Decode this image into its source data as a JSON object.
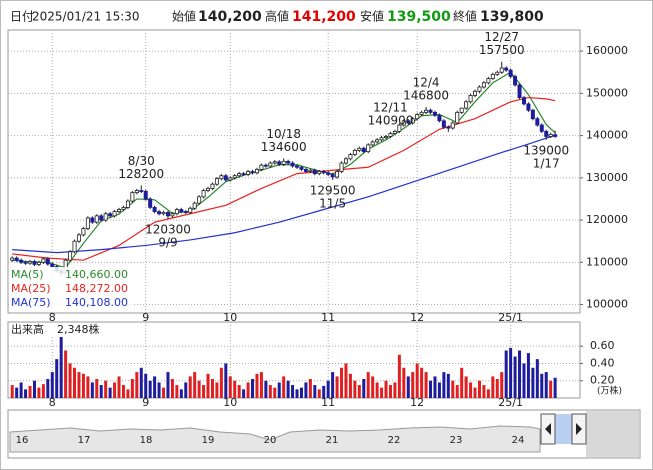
{
  "header": {
    "date_label": "日付",
    "datetime": "2025/01/21 15:30",
    "open_label": "始値",
    "open": "140,200",
    "high_label": "高値",
    "high": "141,200",
    "low_label": "安値",
    "low": "139,500",
    "close_label": "終値",
    "close": "139,800"
  },
  "chart_data": {
    "type": "candlestick",
    "categories": [
      null,
      null,
      null,
      null,
      null,
      null,
      null,
      null,
      null,
      "8",
      null,
      null,
      null,
      null,
      null,
      null,
      null,
      null,
      null,
      null,
      null,
      null,
      null,
      null,
      null,
      null,
      null,
      null,
      null,
      null,
      "9",
      null,
      null,
      null,
      null,
      null,
      null,
      null,
      null,
      null,
      null,
      null,
      null,
      null,
      null,
      null,
      null,
      null,
      null,
      "10",
      null,
      null,
      null,
      null,
      null,
      null,
      null,
      null,
      null,
      null,
      null,
      null,
      null,
      null,
      null,
      null,
      null,
      null,
      null,
      null,
      null,
      "11",
      null,
      null,
      null,
      null,
      null,
      null,
      null,
      null,
      null,
      null,
      null,
      null,
      null,
      null,
      null,
      null,
      null,
      null,
      null,
      "12",
      null,
      null,
      null,
      null,
      null,
      null,
      null,
      null,
      null,
      null,
      null,
      null,
      null,
      null,
      null,
      null,
      null,
      null,
      null,
      null,
      "25/1",
      null,
      null,
      null,
      null,
      null,
      null,
      null,
      null,
      null,
      null
    ],
    "open": [
      110500,
      111000,
      110500,
      110000,
      109800,
      110200,
      109500,
      110000,
      110800,
      109600,
      109000,
      108000,
      107500,
      110500,
      112500,
      115000,
      116500,
      118000,
      120500,
      119500,
      121000,
      120000,
      121500,
      121000,
      122000,
      122500,
      123000,
      124500,
      126500,
      127000,
      126800,
      125000,
      123000,
      122000,
      121500,
      121800,
      121000,
      121500,
      122500,
      122000,
      121800,
      122800,
      124000,
      125500,
      127000,
      127500,
      128500,
      129800,
      130500,
      129500,
      130000,
      130500,
      131000,
      130800,
      131500,
      131200,
      132000,
      133000,
      132800,
      133500,
      133800,
      133200,
      133900,
      133500,
      132800,
      132500,
      132000,
      131500,
      131800,
      131000,
      131500,
      131200,
      130800,
      130200,
      131500,
      133500,
      134500,
      135500,
      136500,
      137000,
      136200,
      137800,
      138500,
      139000,
      139500,
      139800,
      140500,
      141000,
      142500,
      143500,
      143000,
      144000,
      145000,
      145500,
      146000,
      145500,
      144800,
      143500,
      142000,
      141800,
      143000,
      145500,
      146500,
      148000,
      149500,
      150500,
      151500,
      152500,
      153500,
      154500,
      155000,
      156000,
      155500,
      154000,
      152000,
      149000,
      147500,
      146000,
      144000,
      142500,
      141000,
      139800,
      140200
    ],
    "high": [
      111400,
      111400,
      110900,
      110400,
      110600,
      110600,
      110400,
      111200,
      111200,
      110000,
      109400,
      108400,
      110900,
      112900,
      115400,
      116900,
      118400,
      120900,
      120900,
      121400,
      121400,
      121900,
      121900,
      122400,
      122900,
      123400,
      124900,
      126900,
      127400,
      128200,
      127200,
      125400,
      123400,
      122400,
      122200,
      122200,
      121900,
      122900,
      122900,
      122400,
      123200,
      124400,
      125900,
      127400,
      127900,
      128900,
      130200,
      130900,
      130900,
      130400,
      130900,
      131400,
      131400,
      131900,
      131900,
      132400,
      133400,
      133400,
      133900,
      134200,
      134200,
      134600,
      134300,
      133900,
      133200,
      132900,
      132400,
      132200,
      132200,
      131900,
      131900,
      131600,
      131200,
      131900,
      133900,
      134900,
      135900,
      136900,
      137400,
      137400,
      138200,
      138900,
      139400,
      139900,
      140200,
      140900,
      141400,
      142900,
      143900,
      143900,
      144400,
      145400,
      145900,
      146800,
      146400,
      145900,
      145200,
      143900,
      142400,
      143400,
      145900,
      146600,
      148400,
      149900,
      150900,
      151900,
      152900,
      153900,
      154900,
      155400,
      157500,
      156400,
      155900,
      154400,
      152400,
      149400,
      147900,
      146400,
      144400,
      142900,
      141400,
      140700,
      141200
    ],
    "low": [
      110100,
      110100,
      109600,
      109400,
      109400,
      109100,
      109100,
      109600,
      109200,
      108600,
      107600,
      106800,
      107100,
      110100,
      112100,
      114600,
      116100,
      117600,
      119100,
      119100,
      119600,
      119600,
      120600,
      120600,
      121600,
      122100,
      122600,
      124100,
      126100,
      126400,
      124600,
      122600,
      121600,
      121100,
      121100,
      120300,
      120600,
      121100,
      121600,
      121400,
      121400,
      122400,
      123600,
      125100,
      126600,
      127100,
      128100,
      129400,
      129100,
      129100,
      129600,
      130100,
      130400,
      130400,
      130800,
      130800,
      131600,
      132400,
      132400,
      133100,
      132800,
      132800,
      133100,
      132400,
      132100,
      131600,
      131100,
      131100,
      130600,
      130600,
      130800,
      130400,
      129500,
      129800,
      131100,
      133100,
      134100,
      135100,
      136100,
      135800,
      135800,
      137400,
      138100,
      138600,
      139100,
      139400,
      140100,
      140600,
      142100,
      142600,
      142600,
      143600,
      144600,
      145100,
      145100,
      144400,
      143100,
      141600,
      140900,
      141400,
      142600,
      145100,
      146100,
      147600,
      149100,
      150100,
      151100,
      152100,
      153100,
      154100,
      154600,
      155100,
      153600,
      151600,
      148600,
      147100,
      145600,
      143600,
      142100,
      140600,
      139000,
      139400,
      139500
    ],
    "close": [
      111000,
      110500,
      110000,
      109800,
      110200,
      109500,
      110000,
      110800,
      109600,
      109000,
      108000,
      107500,
      110500,
      112500,
      115000,
      116500,
      118000,
      120500,
      119500,
      121000,
      120000,
      121500,
      121000,
      122000,
      122500,
      123000,
      124500,
      126500,
      127000,
      126800,
      125000,
      123000,
      122000,
      121500,
      121800,
      121000,
      121500,
      122500,
      122000,
      121800,
      122800,
      124000,
      125500,
      127000,
      127500,
      128500,
      129800,
      130500,
      129500,
      130000,
      130500,
      131000,
      130800,
      131500,
      131200,
      132000,
      133000,
      132800,
      133500,
      133800,
      133200,
      133900,
      133500,
      132800,
      132500,
      132000,
      131500,
      131800,
      131000,
      131500,
      131200,
      130800,
      130200,
      131500,
      133500,
      134500,
      135500,
      136500,
      137000,
      136200,
      137800,
      138500,
      139000,
      139500,
      139800,
      140500,
      141000,
      142500,
      143500,
      143000,
      144000,
      145000,
      145500,
      146000,
      145500,
      144800,
      143500,
      142000,
      141800,
      143000,
      145500,
      146500,
      148000,
      149500,
      150500,
      151500,
      152500,
      153500,
      154500,
      155000,
      156000,
      155500,
      154000,
      152000,
      149000,
      147500,
      146000,
      144000,
      142500,
      141000,
      139800,
      140300,
      139800
    ],
    "up_color": "#ffffff",
    "down_color": "#1c1c9c",
    "ylim": [
      98000,
      165000
    ],
    "yticks": [
      100000,
      110000,
      120000,
      130000,
      140000,
      150000,
      160000
    ],
    "grid": true,
    "series": [
      {
        "name": "MA(5)",
        "color": "#2a8a2a",
        "legend_value": "140,660.00",
        "x": [
          0,
          4,
          8,
          12,
          16,
          20,
          24,
          28,
          32,
          36,
          40,
          44,
          48,
          52,
          56,
          60,
          64,
          68,
          72,
          76,
          80,
          84,
          88,
          92,
          96,
          100,
          104,
          108,
          112,
          116,
          120,
          122
        ],
        "values": [
          110500,
          110100,
          110000,
          108700,
          114500,
          119800,
          121400,
          125000,
          124800,
          121600,
          122100,
          125400,
          129100,
          130600,
          131800,
          133100,
          133100,
          131900,
          130900,
          133200,
          136800,
          139000,
          141700,
          144700,
          145000,
          143100,
          148000,
          152500,
          155000,
          149700,
          142600,
          140660
        ]
      },
      {
        "name": "MA(25)",
        "color": "#e8231f",
        "legend_value": "148,272.00",
        "x": [
          0,
          8,
          16,
          24,
          32,
          40,
          48,
          56,
          64,
          72,
          80,
          88,
          96,
          104,
          112,
          116,
          120,
          122
        ],
        "values": [
          112000,
          111000,
          110500,
          114000,
          119500,
          121500,
          123500,
          127500,
          131000,
          131800,
          132500,
          136500,
          141500,
          144000,
          148000,
          149000,
          148700,
          148272
        ]
      },
      {
        "name": "MA(75)",
        "color": "#2233cc",
        "legend_value": "140,108.00",
        "x": [
          0,
          10,
          20,
          30,
          40,
          50,
          60,
          70,
          80,
          90,
          100,
          110,
          116,
          122
        ],
        "values": [
          113000,
          112300,
          113000,
          114000,
          115300,
          117000,
          119500,
          122500,
          125500,
          129000,
          132500,
          136000,
          138000,
          140108
        ]
      }
    ],
    "annotations": [
      {
        "date": "8/30",
        "value": 128200
      },
      {
        "date": "9/9",
        "value": 120300
      },
      {
        "date": "10/18",
        "value": 134600
      },
      {
        "date": "11/5",
        "value": 129500
      },
      {
        "date": "12/4",
        "value": 146800
      },
      {
        "date": "12/11",
        "value": 140900
      },
      {
        "date": "12/27",
        "value": 157500
      },
      {
        "date": "1/17",
        "value": 139000
      }
    ],
    "volume": {
      "title": "出来高",
      "last": "2,348株",
      "unit": "(万株)",
      "up_color": "#e02020",
      "down_color": "#1c1c9c",
      "ylim": [
        0,
        0.88
      ],
      "yticks": [
        {
          "value": 0.2,
          "label": "0.20"
        },
        {
          "value": 0.4,
          "label": "0.40"
        },
        {
          "value": 0.6,
          "label": "0.60"
        }
      ],
      "values": [
        0.15,
        0.12,
        0.18,
        0.1,
        0.14,
        0.2,
        0.12,
        0.16,
        0.22,
        0.3,
        0.45,
        0.72,
        0.55,
        0.4,
        0.35,
        0.3,
        0.28,
        0.25,
        0.18,
        0.22,
        0.15,
        0.2,
        0.12,
        0.18,
        0.25,
        0.15,
        0.1,
        0.22,
        0.3,
        0.35,
        0.28,
        0.2,
        0.25,
        0.18,
        0.12,
        0.3,
        0.22,
        0.15,
        0.1,
        0.18,
        0.25,
        0.3,
        0.2,
        0.15,
        0.28,
        0.22,
        0.18,
        0.35,
        0.4,
        0.25,
        0.2,
        0.15,
        0.1,
        0.18,
        0.22,
        0.28,
        0.3,
        0.2,
        0.15,
        0.12,
        0.18,
        0.25,
        0.2,
        0.15,
        0.1,
        0.12,
        0.18,
        0.22,
        0.15,
        0.1,
        0.14,
        0.2,
        0.3,
        0.25,
        0.35,
        0.4,
        0.28,
        0.2,
        0.15,
        0.22,
        0.3,
        0.25,
        0.18,
        0.12,
        0.2,
        0.15,
        0.18,
        0.5,
        0.35,
        0.25,
        0.3,
        0.4,
        0.35,
        0.3,
        0.2,
        0.25,
        0.18,
        0.3,
        0.28,
        0.2,
        0.15,
        0.35,
        0.25,
        0.18,
        0.12,
        0.2,
        0.15,
        0.1,
        0.25,
        0.22,
        0.3,
        0.55,
        0.58,
        0.48,
        0.55,
        0.4,
        0.52,
        0.35,
        0.45,
        0.28,
        0.3,
        0.2,
        0.2348
      ]
    },
    "navigator_labels": [
      "16",
      "17",
      "18",
      "19",
      "20",
      "21",
      "22",
      "23",
      "24"
    ]
  }
}
